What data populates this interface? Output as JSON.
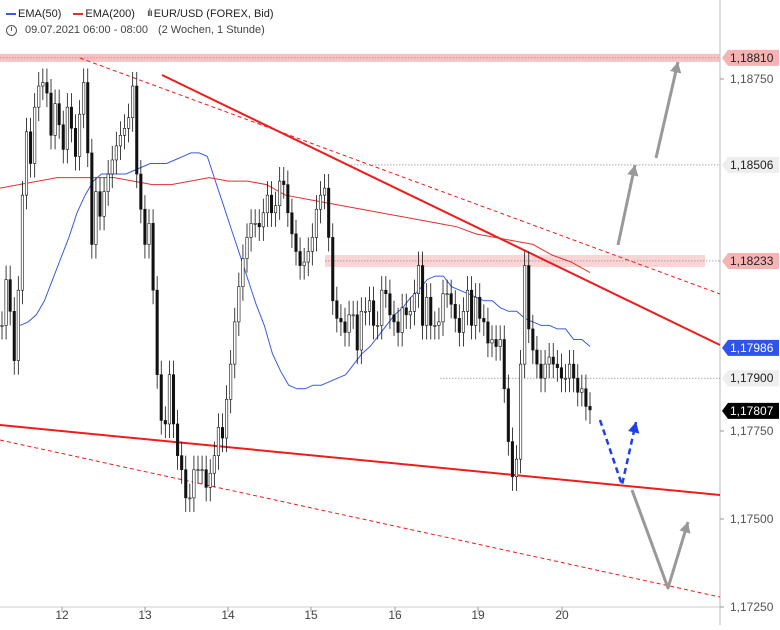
{
  "legend": {
    "ema50_label": "EMA(50)",
    "ema200_label": "EMA(200)",
    "instrument": "EUR/USD (FOREX, Bid)",
    "time_info": "09.07.2021 06:00 - 08:00",
    "range_info": "(2 Wochen, 1 Stunde)"
  },
  "colors": {
    "ema50": "#3b5bdb",
    "ema200": "#e03131",
    "trendline": "#ee1c1c",
    "resistance_zone": "#f7b3b3",
    "scenario_arrow": "#1e40e6",
    "projection_arrow": "#999999",
    "price_box": "#000000",
    "ema50_box": "#2f54eb"
  },
  "chart_data": {
    "type": "candlestick",
    "instrument": "EUR/USD (FOREX, Bid)",
    "timeframe": "1 Stunde",
    "x_ticks": [
      "12",
      "13",
      "14",
      "15",
      "16",
      "19",
      "20"
    ],
    "y_ticks": [
      1.1875,
      1.175,
      1.1725
    ],
    "ylim": [
      1.1721,
      1.1888
    ],
    "price_levels": [
      {
        "label": "1,18810",
        "value": 1.1881,
        "kind": "resistance-zone"
      },
      {
        "label": "1,18750",
        "value": 1.1875,
        "kind": "tick"
      },
      {
        "label": "1,18506",
        "value": 1.18506,
        "kind": "level"
      },
      {
        "label": "1,18233",
        "value": 1.18233,
        "kind": "resistance-zone"
      },
      {
        "label": "1,17986",
        "value": 1.17986,
        "kind": "ema50"
      },
      {
        "label": "1,17900",
        "value": 1.179,
        "kind": "support"
      },
      {
        "label": "1,17807",
        "value": 1.17807,
        "kind": "last-price"
      },
      {
        "label": "1,17750",
        "value": 1.1775,
        "kind": "tick"
      },
      {
        "label": "1,17500",
        "value": 1.175,
        "kind": "tick"
      },
      {
        "label": "1,17250",
        "value": 1.1725,
        "kind": "tick"
      }
    ],
    "closes": [
      1.1805,
      1.1818,
      1.1809,
      1.1795,
      1.1815,
      1.1842,
      1.186,
      1.1851,
      1.1867,
      1.1873,
      1.1874,
      1.1871,
      1.1859,
      1.1868,
      1.1862,
      1.1855,
      1.1867,
      1.1861,
      1.1853,
      1.1865,
      1.1874,
      1.1854,
      1.1828,
      1.1843,
      1.1836,
      1.1843,
      1.1848,
      1.1852,
      1.1856,
      1.1859,
      1.1861,
      1.1864,
      1.1873,
      1.1848,
      1.1838,
      1.1828,
      1.1834,
      1.1815,
      1.1791,
      1.1778,
      1.1777,
      1.1791,
      1.1777,
      1.1768,
      1.1764,
      1.1756,
      1.1756,
      1.1764,
      1.1764,
      1.1764,
      1.1759,
      1.1763,
      1.1768,
      1.1776,
      1.1773,
      1.1784,
      1.1794,
      1.1806,
      1.1816,
      1.1824,
      1.183,
      1.1834,
      1.1834,
      1.1833,
      1.1837,
      1.1842,
      1.1837,
      1.1839,
      1.1846,
      1.1845,
      1.1837,
      1.1831,
      1.1826,
      1.1822,
      1.1823,
      1.1826,
      1.183,
      1.1838,
      1.1842,
      1.1844,
      1.183,
      1.1812,
      1.1807,
      1.1806,
      1.1803,
      1.1808,
      1.1808,
      1.1798,
      1.1809,
      1.1809,
      1.1812,
      1.1805,
      1.1805,
      1.1815,
      1.1814,
      1.1808,
      1.1806,
      1.1803,
      1.181,
      1.1808,
      1.1809,
      1.1814,
      1.1822,
      1.1805,
      1.1813,
      1.1805,
      1.1805,
      1.1806,
      1.1814,
      1.1814,
      1.1811,
      1.1807,
      1.1803,
      1.1809,
      1.1815,
      1.1805,
      1.1813,
      1.1807,
      1.1806,
      1.18,
      1.1801,
      1.1799,
      1.1801,
      1.1787,
      1.1772,
      1.1762,
      1.1767,
      1.1794,
      1.1822,
      1.1804,
      1.1798,
      1.1794,
      1.179,
      1.1794,
      1.1796,
      1.1794,
      1.1793,
      1.179,
      1.179,
      1.1794,
      1.179,
      1.1786,
      1.1787,
      1.1782,
      1.1781
    ],
    "series": [
      {
        "name": "EMA(50)",
        "values": [
          1.1805,
          1.1806,
          1.1808,
          1.1812,
          1.1818,
          1.1824,
          1.183,
          1.1837,
          1.1842,
          1.1846,
          1.1848,
          1.1848,
          1.1848,
          1.1848,
          1.1849,
          1.185,
          1.1851,
          1.1851,
          1.1851,
          1.1852,
          1.1853,
          1.1854,
          1.1854,
          1.1853,
          1.1846,
          1.1839,
          1.1832,
          1.1825,
          1.1818,
          1.1811,
          1.1805,
          1.1797,
          1.1792,
          1.1788,
          1.1787,
          1.1787,
          1.1788,
          1.1788,
          1.1789,
          1.179,
          1.1791,
          1.1794,
          1.1797,
          1.1799,
          1.1802,
          1.1805,
          1.1808,
          1.181,
          1.1813,
          1.1815,
          1.1818,
          1.1819,
          1.1819,
          1.1816,
          1.1815,
          1.1814,
          1.1813,
          1.1812,
          1.1812,
          1.181,
          1.1809,
          1.1809,
          1.1807,
          1.1806,
          1.1805,
          1.1805,
          1.1804,
          1.1804,
          1.1801,
          1.1801,
          1.1799
        ]
      },
      {
        "name": "EMA(200)",
        "values": [
          1.1844,
          1.1845,
          1.1846,
          1.1847,
          1.1847,
          1.1847,
          1.1847,
          1.1846,
          1.1845,
          1.1845,
          1.1846,
          1.1847,
          1.1846,
          1.1846,
          1.1845,
          1.1842,
          1.1841,
          1.184,
          1.1839,
          1.1838,
          1.1837,
          1.1836,
          1.1835,
          1.1834,
          1.1833,
          1.1831,
          1.183,
          1.1829,
          1.1828,
          1.1825,
          1.1823,
          1.182
        ]
      }
    ],
    "annotations": [
      "upper descending trendline",
      "lower descending trendline",
      "upper dashed channel line",
      "lower dashed channel line",
      "resistance zone 1,18810",
      "resistance zone 1,18233",
      "support level 1,17900",
      "blue dashed scenario down then up",
      "grey projection arrows"
    ]
  }
}
